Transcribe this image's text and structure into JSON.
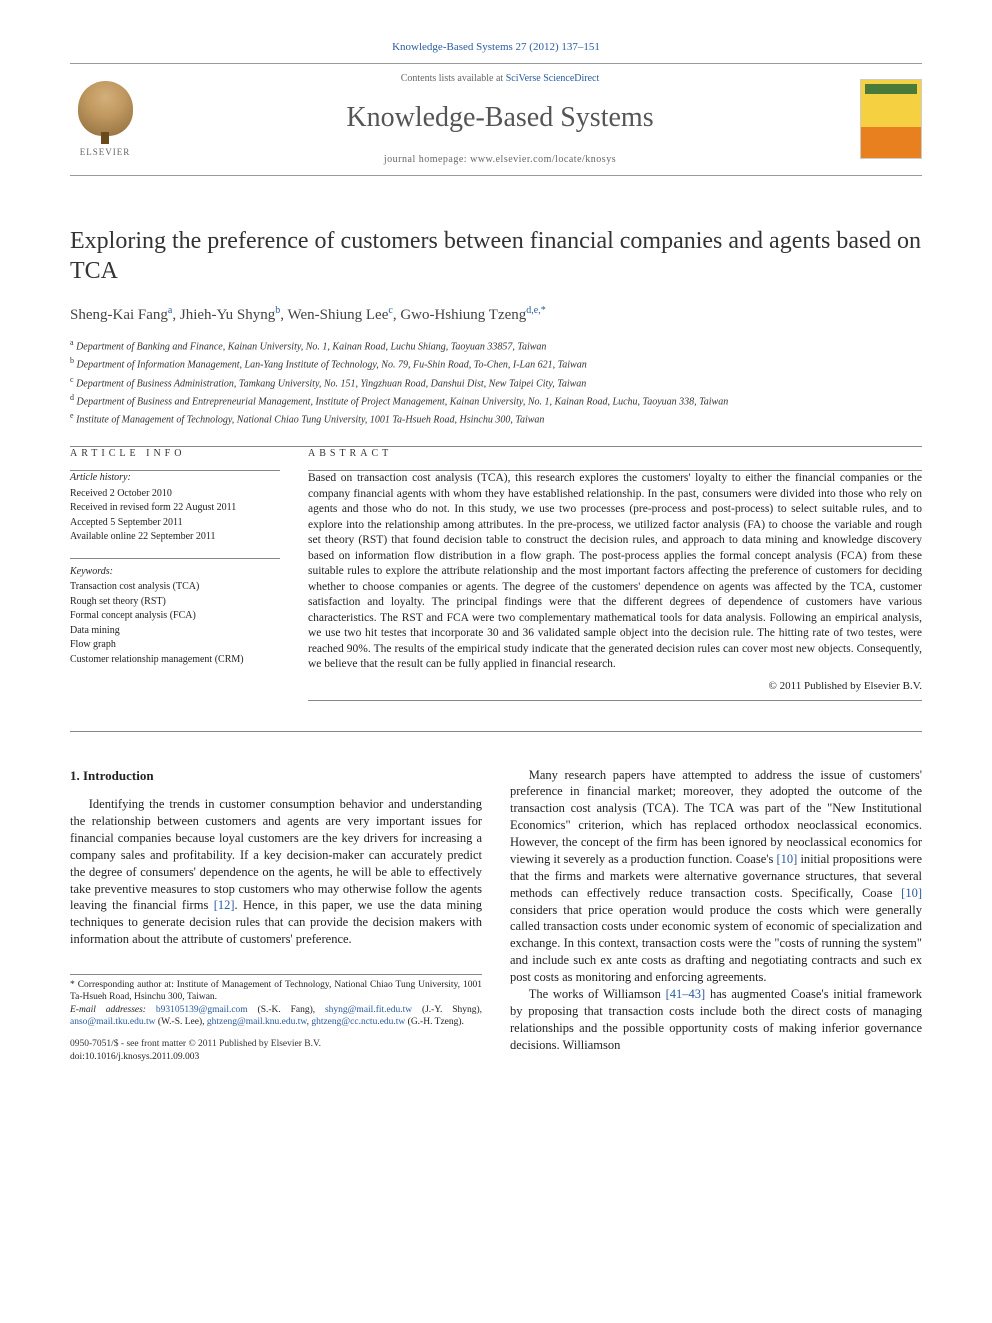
{
  "header": {
    "citation": "Knowledge-Based Systems 27 (2012) 137–151",
    "contents_prefix": "Contents lists available at ",
    "contents_link": "SciVerse ScienceDirect",
    "journal_name": "Knowledge-Based Systems",
    "homepage_prefix": "journal homepage: ",
    "homepage_url": "www.elsevier.com/locate/knosys",
    "publisher": "ELSEVIER"
  },
  "article": {
    "title": "Exploring the preference of customers between financial companies and agents based on TCA",
    "authors_html": "Sheng-Kai Fang<sup>a</sup>, Jhieh-Yu Shyng<sup>b</sup>, Wen-Shiung Lee<sup>c</sup>, Gwo-Hshiung Tzeng<sup>d,e,*</sup>",
    "affiliations": [
      "a|Department of Banking and Finance, Kainan University, No. 1, Kainan Road, Luchu Shiang, Taoyuan 33857, Taiwan",
      "b|Department of Information Management, Lan-Yang Institute of Technology, No. 79, Fu-Shin Road, To-Chen, I-Lan 621, Taiwan",
      "c|Department of Business Administration, Tamkang University, No. 151, Yingzhuan Road, Danshui Dist, New Taipei City, Taiwan",
      "d|Department of Business and Entrepreneurial Management, Institute of Project Management, Kainan University, No. 1, Kainan Road, Luchu, Taoyuan 338, Taiwan",
      "e|Institute of Management of Technology, National Chiao Tung University, 1001 Ta-Hsueh Road, Hsinchu 300, Taiwan"
    ]
  },
  "info": {
    "heading": "ARTICLE INFO",
    "history_label": "Article history:",
    "history": [
      "Received 2 October 2010",
      "Received in revised form 22 August 2011",
      "Accepted 5 September 2011",
      "Available online 22 September 2011"
    ],
    "keywords_label": "Keywords:",
    "keywords": [
      "Transaction cost analysis (TCA)",
      "Rough set theory (RST)",
      "Formal concept analysis (FCA)",
      "Data mining",
      "Flow graph",
      "Customer relationship management (CRM)"
    ]
  },
  "abstract": {
    "heading": "ABSTRACT",
    "text": "Based on transaction cost analysis (TCA), this research explores the customers' loyalty to either the financial companies or the company financial agents with whom they have established relationship. In the past, consumers were divided into those who rely on agents and those who do not. In this study, we use two processes (pre-process and post-process) to select suitable rules, and to explore into the relationship among attributes. In the pre-process, we utilized factor analysis (FA) to choose the variable and rough set theory (RST) that found decision table to construct the decision rules, and approach to data mining and knowledge discovery based on information flow distribution in a flow graph. The post-process applies the formal concept analysis (FCA) from these suitable rules to explore the attribute relationship and the most important factors affecting the preference of customers for deciding whether to choose companies or agents. The degree of the customers' dependence on agents was affected by the TCA, customer satisfaction and loyalty. The principal findings were that the different degrees of dependence of customers have various characteristics. The RST and FCA were two complementary mathematical tools for data analysis. Following an empirical analysis, we use two hit testes that incorporate 30 and 36 validated sample object into the decision rule. The hitting rate of two testes, were reached 90%. The results of the empirical study indicate that the generated decision rules can cover most new objects. Consequently, we believe that the result can be fully applied in financial research.",
    "copyright": "© 2011 Published by Elsevier B.V."
  },
  "body": {
    "section_heading": "1. Introduction",
    "col1_p1": "Identifying the trends in customer consumption behavior and understanding the relationship between customers and agents are very important issues for financial companies because loyal customers are the key drivers for increasing a company sales and profitability. If a key decision-maker can accurately predict the degree of consumers' dependence on the agents, he will be able to effectively take preventive measures to stop customers who may otherwise follow the agents leaving the financial firms [12]. Hence, in this paper, we use the data mining techniques to generate decision rules that can provide the decision makers with information about the attribute of customers' preference.",
    "col2_p1": "Many research papers have attempted to address the issue of customers' preference in financial market; moreover, they adopted the outcome of the transaction cost analysis (TCA). The TCA was part of the \"New Institutional Economics\" criterion, which has replaced orthodox neoclassical economics. However, the concept of the firm has been ignored by neoclassical economics for viewing it severely as a production function. Coase's [10] initial propositions were that the firms and markets were alternative governance structures, that several methods can effectively reduce transaction costs. Specifically, Coase [10] considers that price operation would produce the costs which were generally called transaction costs under economic system of economic of specialization and exchange. In this context, transaction costs were the \"costs of running the system\" and include such ex ante costs as drafting and negotiating contracts and such ex post costs as monitoring and enforcing agreements.",
    "col2_p2": "The works of Williamson [41–43] has augmented Coase's initial framework by proposing that transaction costs include both the direct costs of managing relationships and the possible opportunity costs of making inferior governance decisions. Williamson"
  },
  "footnotes": {
    "corresponding": "* Corresponding author at: Institute of Management of Technology, National Chiao Tung University, 1001 Ta-Hsueh Road, Hsinchu 300, Taiwan.",
    "emails_label": "E-mail addresses:",
    "emails": "b93105139@gmail.com (S.-K. Fang), shyng@mail.fit.edu.tw (J.-Y. Shyng), anso@mail.tku.edu.tw (W.-S. Lee), ghtzeng@mail.knu.edu.tw, ghtzeng@cc.nctu.edu.tw (G.-H. Tzeng).",
    "frontmatter": "0950-7051/$ - see front matter © 2011 Published by Elsevier B.V.",
    "doi": "doi:10.1016/j.knosys.2011.09.003"
  },
  "refs": {
    "r12": "[12]",
    "r10a": "[10]",
    "r10b": "[10]",
    "r41": "[41–43]"
  }
}
